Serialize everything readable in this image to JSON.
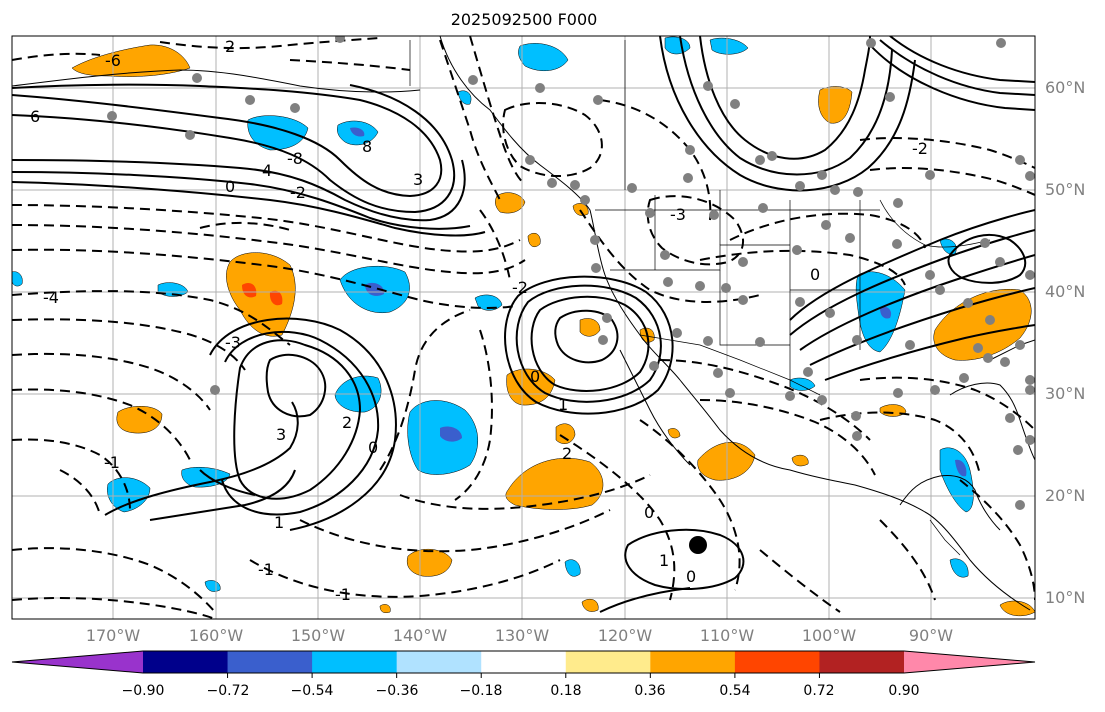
{
  "title": "2025092500 F000",
  "map": {
    "lat_labels": [
      "60°N",
      "50°N",
      "40°N",
      "30°N",
      "20°N",
      "10°N"
    ],
    "lon_labels": [
      "170°W",
      "160°W",
      "150°W",
      "140°W",
      "130°W",
      "120°W",
      "110°W",
      "100°W",
      "90°W"
    ],
    "contour_labels": [
      "6",
      "-6",
      "2",
      "-2",
      "4",
      "-4",
      "3",
      "-3",
      "0",
      "8",
      "-8",
      "2",
      "3",
      "0",
      "1",
      "-1",
      "0",
      "2",
      "-2",
      "1",
      "0",
      "-1",
      "-1",
      "1",
      "0",
      "-3",
      "0",
      "-2"
    ],
    "colors": {
      "grid": "#b0b0b0",
      "coast": "#000000",
      "contour": "#000000",
      "station_dot": "#808080"
    }
  },
  "colorbar": {
    "ticks": [
      "−0.90",
      "−0.72",
      "−0.54",
      "−0.36",
      "−0.18",
      "0.18",
      "0.36",
      "0.54",
      "0.72",
      "0.90"
    ],
    "colors": [
      "#9933cc",
      "#00008b",
      "#3a5fcd",
      "#00bfff",
      "#b0e2ff",
      "#ffffff",
      "#ffeb8c",
      "#ffa500",
      "#ff4500",
      "#b22222",
      "#ff88aa"
    ]
  }
}
